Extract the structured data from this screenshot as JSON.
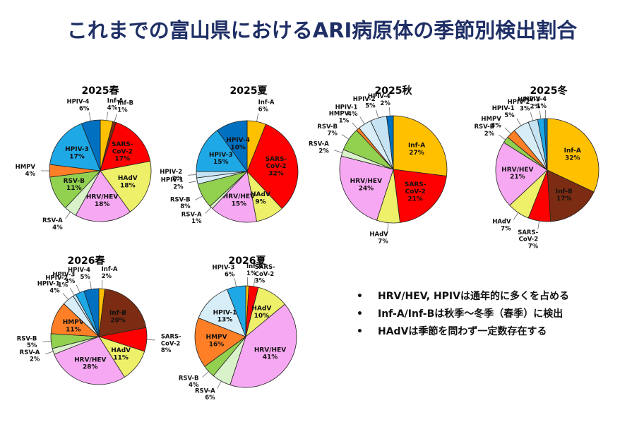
{
  "title": "これまでの富山県におけるARI病原体の季節別検出割合",
  "colors": {
    "Inf-A": "#ffc000",
    "Inf-B": "#7b2c12",
    "SARS-CoV-2": "#ff0000",
    "HAdV": "#eef06a",
    "HRV/HEV": "#f6a8f2",
    "RSV-A": "#d9f2c9",
    "RSV-B": "#92d050",
    "HMPV": "#ff7f27",
    "HPIV-1": "#d7eef8",
    "HPIV-2": "#c6e3f3",
    "HPIV-3": "#1ea8e6",
    "HPIV-4": "#0070c0"
  },
  "chart_data": [
    {
      "type": "pie",
      "title": "2025春",
      "slices": [
        {
          "label": "Inf-A",
          "value": 4
        },
        {
          "label": "Inf-B",
          "value": 1
        },
        {
          "label": "SARS-CoV-2",
          "value": 17
        },
        {
          "label": "HAdV",
          "value": 18
        },
        {
          "label": "HRV/HEV",
          "value": 18
        },
        {
          "label": "RSV-A",
          "value": 4
        },
        {
          "label": "RSV-B",
          "value": 11
        },
        {
          "label": "HMPV",
          "value": 4
        },
        {
          "label": "HPIV-3",
          "value": 17
        },
        {
          "label": "HPIV-4",
          "value": 6
        }
      ]
    },
    {
      "type": "pie",
      "title": "2025夏",
      "slices": [
        {
          "label": "Inf-A",
          "value": 6
        },
        {
          "label": "SARS-CoV-2",
          "value": 32
        },
        {
          "label": "HAdV",
          "value": 9
        },
        {
          "label": "HRV/HEV",
          "value": 15
        },
        {
          "label": "RSV-A",
          "value": 1
        },
        {
          "label": "RSV-B",
          "value": 8
        },
        {
          "label": "HPIV-1",
          "value": 2
        },
        {
          "label": "HPIV-2",
          "value": 2
        },
        {
          "label": "HPIV-3",
          "value": 15
        },
        {
          "label": "HPIV-4",
          "value": 10
        }
      ]
    },
    {
      "type": "pie",
      "title": "2025秋",
      "slices": [
        {
          "label": "Inf-A",
          "value": 27
        },
        {
          "label": "SARS-CoV-2",
          "value": 21
        },
        {
          "label": "HAdV",
          "value": 7
        },
        {
          "label": "HRV/HEV",
          "value": 24
        },
        {
          "label": "RSV-A",
          "value": 2
        },
        {
          "label": "RSV-B",
          "value": 7
        },
        {
          "label": "HMPV",
          "value": 1
        },
        {
          "label": "HPIV-1",
          "value": 4
        },
        {
          "label": "HPIV-2",
          "value": 5
        },
        {
          "label": "HPIV-4",
          "value": 2
        }
      ]
    },
    {
      "type": "pie",
      "title": "2025冬",
      "slices": [
        {
          "label": "Inf-A",
          "value": 32
        },
        {
          "label": "Inf-B",
          "value": 17
        },
        {
          "label": "SARS-CoV-2",
          "value": 7
        },
        {
          "label": "HAdV",
          "value": 7
        },
        {
          "label": "HRV/HEV",
          "value": 21
        },
        {
          "label": "RSV-B",
          "value": 2
        },
        {
          "label": "HMPV",
          "value": 3
        },
        {
          "label": "HPIV-1",
          "value": 5
        },
        {
          "label": "HPIV-2",
          "value": 3
        },
        {
          "label": "HPIV-3",
          "value": 2
        },
        {
          "label": "HPIV-4",
          "value": 1
        }
      ]
    },
    {
      "type": "pie",
      "title": "2026春",
      "slices": [
        {
          "label": "Inf-A",
          "value": 2
        },
        {
          "label": "Inf-B",
          "value": 20
        },
        {
          "label": "SARS-CoV-2",
          "value": 8
        },
        {
          "label": "HAdV",
          "value": 11
        },
        {
          "label": "HRV/HEV",
          "value": 28
        },
        {
          "label": "RSV-A",
          "value": 2
        },
        {
          "label": "RSV-B",
          "value": 5
        },
        {
          "label": "HMPV",
          "value": 11
        },
        {
          "label": "HPIV-1",
          "value": 4
        },
        {
          "label": "HPIV-2",
          "value": 1
        },
        {
          "label": "HPIV-3",
          "value": 3
        },
        {
          "label": "HPIV-4",
          "value": 5
        }
      ]
    },
    {
      "type": "pie",
      "title": "2026夏",
      "slices": [
        {
          "label": "Inf-A",
          "value": 1
        },
        {
          "label": "SARS-CoV-2",
          "value": 3
        },
        {
          "label": "HAdV",
          "value": 10
        },
        {
          "label": "HRV/HEV",
          "value": 41
        },
        {
          "label": "RSV-A",
          "value": 6
        },
        {
          "label": "RSV-B",
          "value": 4
        },
        {
          "label": "HMPV",
          "value": 16
        },
        {
          "label": "HPIV-1",
          "value": 13
        },
        {
          "label": "HPIV-3",
          "value": 6
        }
      ]
    }
  ],
  "notes": [
    "HRV/HEV, HPIVは通年的に多くを占める",
    "Inf-A/Inf-Bは秋季～冬季（春季）に検出",
    "HAdVは季節を問わず一定数存在する"
  ],
  "bullet": "•"
}
